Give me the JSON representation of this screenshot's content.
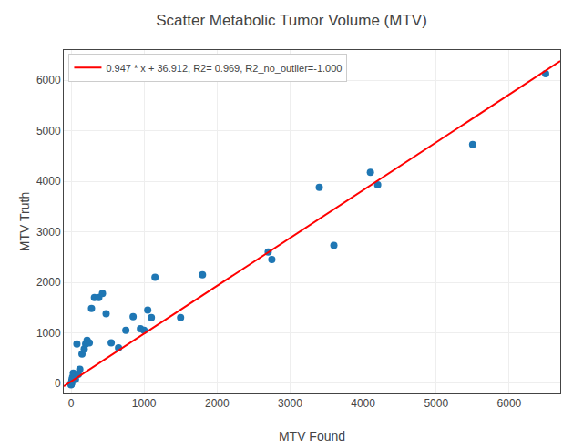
{
  "chart_data": {
    "type": "scatter",
    "title": "Scatter Metabolic Tumor Volume (MTV)",
    "xlabel": "MTV Found",
    "ylabel": "MTV Truth",
    "series": [
      {
        "type": "scatter",
        "marker": "circle",
        "color": "#1f77b4",
        "x": [
          0,
          2,
          5,
          8,
          10,
          15,
          20,
          25,
          30,
          40,
          50,
          60,
          80,
          100,
          120,
          150,
          180,
          200,
          220,
          250,
          280,
          320,
          380,
          430,
          480,
          550,
          650,
          750,
          850,
          950,
          1000,
          1050,
          1100,
          1150,
          1500,
          1800,
          2700,
          2750,
          3400,
          3600,
          4100,
          4200,
          5500,
          6500
        ],
        "values": [
          -30,
          -20,
          10,
          0,
          50,
          80,
          120,
          100,
          200,
          150,
          170,
          80,
          780,
          180,
          280,
          580,
          680,
          780,
          850,
          800,
          1480,
          1700,
          1700,
          1780,
          1380,
          800,
          700,
          1050,
          1320,
          1080,
          1050,
          1450,
          1300,
          2100,
          1300,
          2150,
          2600,
          2450,
          3880,
          2730,
          4180,
          3930,
          4730,
          6130
        ]
      },
      {
        "type": "line",
        "line_style": "solid",
        "name": "0.947 * x + 36.912, R2= 0.969, R2_no_outlier=-1.000",
        "color": "red",
        "x": [
          -100,
          6700
        ],
        "values": [
          -57.788,
          6381.812
        ]
      }
    ],
    "xlim": [
      -100,
      6700
    ],
    "ylim": [
      -200,
      6600
    ],
    "xticks": [
      0,
      1000,
      2000,
      3000,
      4000,
      5000,
      6000
    ],
    "yticks": [
      0,
      1000,
      2000,
      3000,
      4000,
      5000,
      6000
    ],
    "grid": true,
    "legend": "upper left"
  }
}
